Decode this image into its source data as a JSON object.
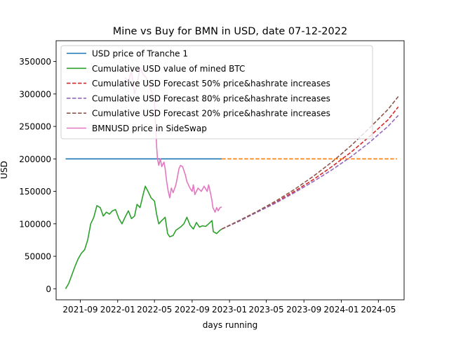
{
  "chart_data": {
    "type": "line",
    "title": "Mine vs Buy for BMN in USD, date 07-12-2022",
    "xlabel": "days running",
    "ylabel": "USD",
    "xlim": [
      "2021-06-14",
      "2024-07-24"
    ],
    "ylim": [
      -17000,
      382000
    ],
    "grid": false,
    "legend_position": "top-left",
    "x_ticks": [
      "2021-09-01",
      "2022-01-01",
      "2022-05-01",
      "2022-09-01",
      "2023-01-01",
      "2023-05-01",
      "2023-09-01",
      "2024-01-01",
      "2024-05-01"
    ],
    "x_tick_labels": [
      "2021-09",
      "2022-01",
      "2022-05",
      "2022-09",
      "2023-01",
      "2023-05",
      "2023-09",
      "2024-01",
      "2024-05"
    ],
    "y_ticks": [
      0,
      50000,
      100000,
      150000,
      200000,
      250000,
      300000,
      350000
    ],
    "y_tick_labels": [
      "0",
      "50000",
      "100000",
      "150000",
      "200000",
      "250000",
      "300000",
      "350000"
    ],
    "series": [
      {
        "name": "USD price of Tranche 1",
        "color": "#1f77b4",
        "dash": "solid",
        "in_legend": true,
        "points": [
          [
            "2021-07-15",
            200000
          ],
          [
            "2022-12-07",
            200000
          ]
        ]
      },
      {
        "name": "",
        "color": "#ff7f0e",
        "dash": "dashed",
        "in_legend": false,
        "points": [
          [
            "2022-12-07",
            200000
          ],
          [
            "2024-07-01",
            200000
          ]
        ]
      },
      {
        "name": "Cumulative USD value of mined BTC",
        "color": "#2ca02c",
        "dash": "solid",
        "in_legend": true,
        "points": [
          [
            "2021-07-15",
            0
          ],
          [
            "2021-07-25",
            8000
          ],
          [
            "2021-08-05",
            22000
          ],
          [
            "2021-08-15",
            35000
          ],
          [
            "2021-08-25",
            46000
          ],
          [
            "2021-09-05",
            55000
          ],
          [
            "2021-09-15",
            60000
          ],
          [
            "2021-09-25",
            75000
          ],
          [
            "2021-10-05",
            100000
          ],
          [
            "2021-10-15",
            110000
          ],
          [
            "2021-10-25",
            128000
          ],
          [
            "2021-11-05",
            125000
          ],
          [
            "2021-11-15",
            112000
          ],
          [
            "2021-11-25",
            118000
          ],
          [
            "2021-12-05",
            115000
          ],
          [
            "2021-12-15",
            120000
          ],
          [
            "2021-12-25",
            122000
          ],
          [
            "2022-01-05",
            108000
          ],
          [
            "2022-01-15",
            100000
          ],
          [
            "2022-01-25",
            110000
          ],
          [
            "2022-02-05",
            120000
          ],
          [
            "2022-02-15",
            108000
          ],
          [
            "2022-02-25",
            112000
          ],
          [
            "2022-03-05",
            130000
          ],
          [
            "2022-03-15",
            125000
          ],
          [
            "2022-03-25",
            145000
          ],
          [
            "2022-04-01",
            158000
          ],
          [
            "2022-04-10",
            150000
          ],
          [
            "2022-04-20",
            140000
          ],
          [
            "2022-05-01",
            135000
          ],
          [
            "2022-05-08",
            115000
          ],
          [
            "2022-05-15",
            100000
          ],
          [
            "2022-05-25",
            105000
          ],
          [
            "2022-06-05",
            110000
          ],
          [
            "2022-06-13",
            85000
          ],
          [
            "2022-06-20",
            80000
          ],
          [
            "2022-07-01",
            82000
          ],
          [
            "2022-07-10",
            90000
          ],
          [
            "2022-07-25",
            95000
          ],
          [
            "2022-08-05",
            100000
          ],
          [
            "2022-08-15",
            110000
          ],
          [
            "2022-08-25",
            98000
          ],
          [
            "2022-09-05",
            92000
          ],
          [
            "2022-09-15",
            102000
          ],
          [
            "2022-09-25",
            95000
          ],
          [
            "2022-10-05",
            97000
          ],
          [
            "2022-10-15",
            96000
          ],
          [
            "2022-10-25",
            100000
          ],
          [
            "2022-11-05",
            105000
          ],
          [
            "2022-11-09",
            88000
          ],
          [
            "2022-11-20",
            85000
          ],
          [
            "2022-12-01",
            90000
          ],
          [
            "2022-12-07",
            92000
          ]
        ]
      },
      {
        "name": "Cumulative USD Forecast 50% price&hashrate increases",
        "color": "#d62728",
        "dash": "dashed",
        "in_legend": true,
        "points": [
          [
            "2022-12-07",
            92000
          ],
          [
            "2023-02-01",
            104000
          ],
          [
            "2023-04-01",
            118000
          ],
          [
            "2023-06-01",
            133000
          ],
          [
            "2023-08-01",
            150000
          ],
          [
            "2023-10-01",
            168000
          ],
          [
            "2023-12-01",
            188000
          ],
          [
            "2024-02-01",
            210000
          ],
          [
            "2024-04-01",
            234000
          ],
          [
            "2024-06-01",
            260000
          ],
          [
            "2024-07-05",
            280000
          ]
        ]
      },
      {
        "name": "Cumulative USD Forecast 80% price&hashrate increases",
        "color": "#9467bd",
        "dash": "dashed",
        "in_legend": true,
        "points": [
          [
            "2022-12-07",
            92000
          ],
          [
            "2023-02-01",
            104000
          ],
          [
            "2023-04-01",
            118000
          ],
          [
            "2023-06-01",
            132000
          ],
          [
            "2023-08-01",
            148000
          ],
          [
            "2023-10-01",
            165000
          ],
          [
            "2023-12-01",
            183000
          ],
          [
            "2024-02-01",
            203000
          ],
          [
            "2024-04-01",
            225000
          ],
          [
            "2024-06-01",
            250000
          ],
          [
            "2024-07-05",
            267000
          ]
        ]
      },
      {
        "name": "Cumulative USD Forecast 20% price&hashrate increases",
        "color": "#8c564b",
        "dash": "dashed",
        "in_legend": true,
        "points": [
          [
            "2022-12-07",
            92000
          ],
          [
            "2023-02-01",
            105000
          ],
          [
            "2023-04-01",
            119000
          ],
          [
            "2023-06-01",
            135000
          ],
          [
            "2023-08-01",
            153000
          ],
          [
            "2023-10-01",
            173000
          ],
          [
            "2023-12-01",
            195000
          ],
          [
            "2024-02-01",
            220000
          ],
          [
            "2024-04-01",
            247000
          ],
          [
            "2024-06-01",
            276000
          ],
          [
            "2024-07-05",
            296000
          ]
        ]
      },
      {
        "name": "BMNUSD price in SideSwap",
        "color": "#e377c2",
        "dash": "solid",
        "in_legend": true,
        "points": [
          [
            "2022-01-25",
            325000
          ],
          [
            "2022-02-05",
            320000
          ],
          [
            "2022-02-15",
            335000
          ],
          [
            "2022-02-25",
            300000
          ],
          [
            "2022-03-05",
            315000
          ],
          [
            "2022-03-15",
            340000
          ],
          [
            "2022-03-25",
            330000
          ],
          [
            "2022-04-05",
            325000
          ],
          [
            "2022-04-15",
            310000
          ],
          [
            "2022-04-25",
            300000
          ],
          [
            "2022-05-01",
            290000
          ],
          [
            "2022-05-03",
            265000
          ],
          [
            "2022-05-06",
            245000
          ],
          [
            "2022-05-08",
            220000
          ],
          [
            "2022-05-11",
            200000
          ],
          [
            "2022-05-15",
            190000
          ],
          [
            "2022-05-20",
            200000
          ],
          [
            "2022-05-25",
            188000
          ],
          [
            "2022-06-01",
            195000
          ],
          [
            "2022-06-05",
            185000
          ],
          [
            "2022-06-10",
            165000
          ],
          [
            "2022-06-15",
            150000
          ],
          [
            "2022-06-20",
            140000
          ],
          [
            "2022-06-25",
            155000
          ],
          [
            "2022-07-01",
            148000
          ],
          [
            "2022-07-10",
            160000
          ],
          [
            "2022-07-15",
            172000
          ],
          [
            "2022-07-20",
            185000
          ],
          [
            "2022-07-25",
            190000
          ],
          [
            "2022-08-01",
            188000
          ],
          [
            "2022-08-10",
            175000
          ],
          [
            "2022-08-15",
            165000
          ],
          [
            "2022-08-25",
            155000
          ],
          [
            "2022-09-01",
            150000
          ],
          [
            "2022-09-05",
            160000
          ],
          [
            "2022-09-10",
            145000
          ],
          [
            "2022-09-20",
            155000
          ],
          [
            "2022-10-01",
            150000
          ],
          [
            "2022-10-10",
            158000
          ],
          [
            "2022-10-20",
            150000
          ],
          [
            "2022-10-25",
            160000
          ],
          [
            "2022-11-01",
            145000
          ],
          [
            "2022-11-05",
            135000
          ],
          [
            "2022-11-08",
            125000
          ],
          [
            "2022-11-15",
            118000
          ],
          [
            "2022-11-20",
            125000
          ],
          [
            "2022-11-25",
            120000
          ],
          [
            "2022-12-01",
            125000
          ],
          [
            "2022-12-07",
            126000
          ]
        ]
      }
    ]
  }
}
